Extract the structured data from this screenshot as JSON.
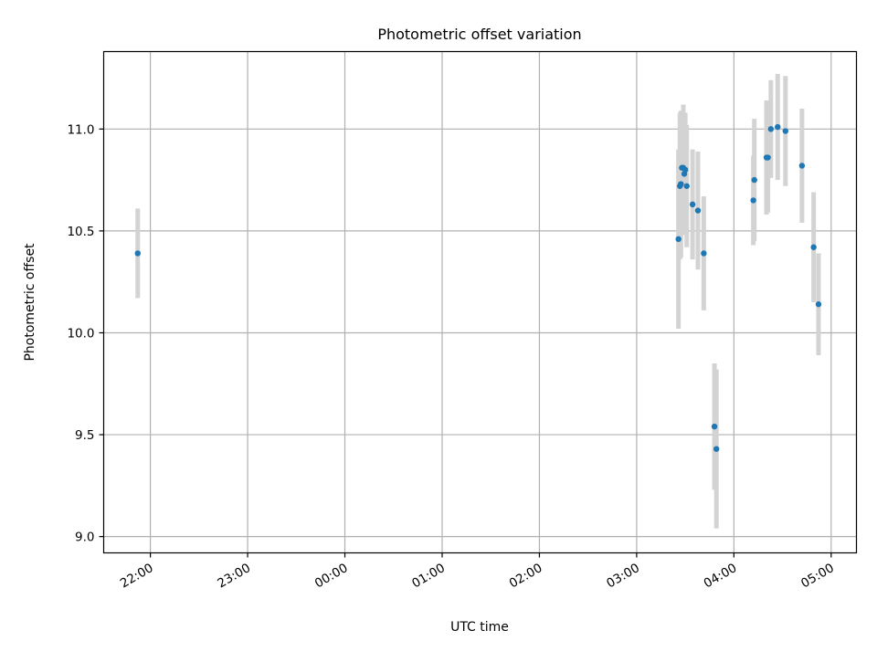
{
  "chart_data": {
    "type": "scatter",
    "title": "Photometric offset variation",
    "xlabel": "UTC time",
    "ylabel": "Photometric offset",
    "x_unit": "hours_from_22:00",
    "xlim": [
      -0.48,
      7.26
    ],
    "ylim": [
      8.92,
      11.38
    ],
    "grid": true,
    "x_ticks": [
      {
        "value": 0,
        "label": "22:00"
      },
      {
        "value": 1,
        "label": "23:00"
      },
      {
        "value": 2,
        "label": "00:00"
      },
      {
        "value": 3,
        "label": "01:00"
      },
      {
        "value": 4,
        "label": "02:00"
      },
      {
        "value": 5,
        "label": "03:00"
      },
      {
        "value": 6,
        "label": "04:00"
      },
      {
        "value": 7,
        "label": "05:00"
      }
    ],
    "y_ticks": [
      {
        "value": 9.0,
        "label": "9.0"
      },
      {
        "value": 9.5,
        "label": "9.5"
      },
      {
        "value": 10.0,
        "label": "10.0"
      },
      {
        "value": 10.5,
        "label": "10.5"
      },
      {
        "value": 11.0,
        "label": "11.0"
      }
    ],
    "marker_color": "#1f77b4",
    "errorbar_color": "#d3d3d3",
    "points": [
      {
        "x": -0.13,
        "y": 10.39,
        "err": 0.22
      },
      {
        "x": 5.43,
        "y": 10.46,
        "err": 0.44
      },
      {
        "x": 5.445,
        "y": 10.72,
        "err": 0.36
      },
      {
        "x": 5.455,
        "y": 10.73,
        "err": 0.36
      },
      {
        "x": 5.465,
        "y": 10.81,
        "err": 0.27
      },
      {
        "x": 5.48,
        "y": 10.81,
        "err": 0.31
      },
      {
        "x": 5.49,
        "y": 10.78,
        "err": 0.3
      },
      {
        "x": 5.5,
        "y": 10.8,
        "err": 0.28
      },
      {
        "x": 5.515,
        "y": 10.72,
        "err": 0.3
      },
      {
        "x": 5.575,
        "y": 10.63,
        "err": 0.27
      },
      {
        "x": 5.63,
        "y": 10.6,
        "err": 0.29
      },
      {
        "x": 5.69,
        "y": 10.39,
        "err": 0.28
      },
      {
        "x": 5.8,
        "y": 9.54,
        "err": 0.31
      },
      {
        "x": 5.82,
        "y": 9.43,
        "err": 0.39
      },
      {
        "x": 6.2,
        "y": 10.65,
        "err": 0.22
      },
      {
        "x": 6.21,
        "y": 10.75,
        "err": 0.3
      },
      {
        "x": 6.335,
        "y": 10.86,
        "err": 0.28
      },
      {
        "x": 6.35,
        "y": 10.86,
        "err": 0.27
      },
      {
        "x": 6.38,
        "y": 11.0,
        "err": 0.24
      },
      {
        "x": 6.45,
        "y": 11.01,
        "err": 0.26
      },
      {
        "x": 6.53,
        "y": 10.99,
        "err": 0.27
      },
      {
        "x": 6.7,
        "y": 10.82,
        "err": 0.28
      },
      {
        "x": 6.82,
        "y": 10.42,
        "err": 0.27
      },
      {
        "x": 6.87,
        "y": 10.14,
        "err": 0.25
      }
    ]
  }
}
